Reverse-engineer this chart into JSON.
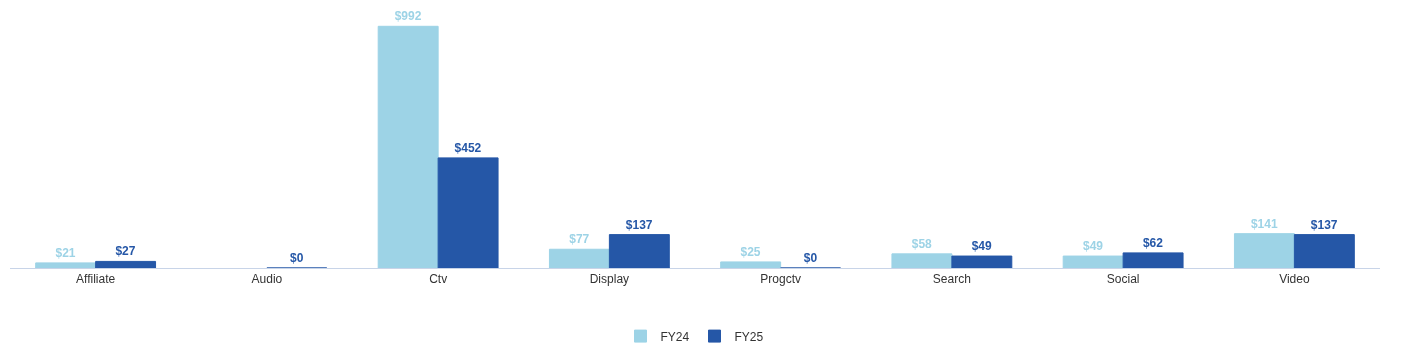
{
  "chart_data": {
    "type": "bar",
    "categories": [
      "Affiliate",
      "Audio",
      "Ctv",
      "Display",
      "Progctv",
      "Search",
      "Social",
      "Video"
    ],
    "series": [
      {
        "name": "FY24",
        "color": "#9dd3e6",
        "values": [
          21,
          null,
          992,
          77,
          25,
          58,
          49,
          141
        ],
        "value_labels": [
          "$21",
          null,
          "$992",
          "$77",
          "$25",
          "$58",
          "$49",
          "$141"
        ]
      },
      {
        "name": "FY25",
        "color": "#2557a7",
        "values": [
          27,
          0,
          452,
          137,
          0,
          49,
          62,
          137
        ],
        "value_labels": [
          "$27",
          "$0",
          "$452",
          "$137",
          "$0",
          "$49",
          "$62",
          "$137"
        ]
      }
    ],
    "ylim": [
      0,
      1100
    ],
    "legend": "bottom"
  }
}
